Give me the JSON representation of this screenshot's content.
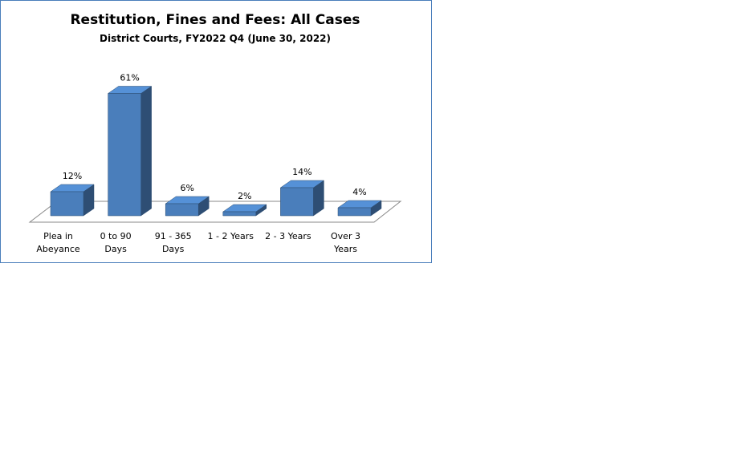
{
  "chart_data": {
    "type": "bar3d",
    "title": "Restitution,  Fines and Fees: All Cases",
    "subtitle": "District Courts, FY2022 Q4 (June 30, 2022)",
    "categories": [
      "Plea in Abeyance",
      "0 to 90 Days",
      "91 - 365 Days",
      "1 - 2 Years",
      "2 - 3 Years",
      "Over 3 Years"
    ],
    "values": [
      12,
      61,
      6,
      2,
      14,
      4
    ],
    "value_labels": [
      "12%",
      "61%",
      "6%",
      "2%",
      "14%",
      "4%"
    ],
    "color": "#4a7ebb"
  }
}
